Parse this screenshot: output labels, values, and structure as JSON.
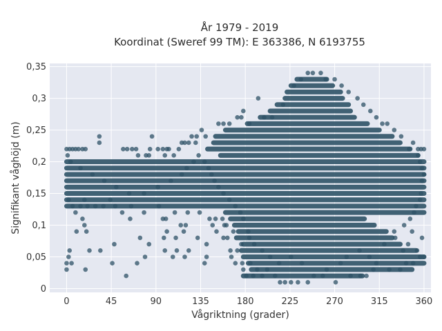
{
  "chart_data": {
    "type": "scatter",
    "title": "År 1979 - 2019",
    "subtitle": "Koordinat (Sweref 99 TM): E 363386, N 6193755",
    "xlabel": "Vågriktning (grader)",
    "ylabel": "Signifikant våghöjd (m)",
    "xlim": [
      -17,
      367
    ],
    "ylim": [
      -0.006,
      0.355
    ],
    "x_ticks": [
      0,
      45,
      90,
      135,
      180,
      225,
      270,
      315,
      360
    ],
    "x_tick_labels": [
      "0",
      "45",
      "90",
      "135",
      "180",
      "225",
      "270",
      "315",
      "360"
    ],
    "y_ticks": [
      0,
      0.05,
      0.1,
      0.15,
      0.2,
      0.25,
      0.3,
      0.35
    ],
    "y_tick_labels": [
      "0",
      "0,05",
      "0,1",
      "0,15",
      "0,2",
      "0,25",
      "0,3",
      "0,35"
    ],
    "grid": true,
    "legend": "none",
    "marker_color": "#2e5266",
    "background_color": "#e5e8f1",
    "points": [
      [
        0,
        0.03
      ],
      [
        0,
        0.04
      ],
      [
        2,
        0.05
      ],
      [
        3,
        0.06
      ],
      [
        5,
        0.04
      ],
      [
        19,
        0.03
      ],
      [
        23,
        0.06
      ],
      [
        34,
        0.06
      ],
      [
        46,
        0.04
      ],
      [
        48,
        0.07
      ],
      [
        60,
        0.02
      ],
      [
        71,
        0.04
      ],
      [
        79,
        0.05
      ],
      [
        83,
        0.07
      ],
      [
        99,
        0.06
      ],
      [
        101,
        0.09
      ],
      [
        100,
        0.11
      ],
      [
        98,
        0.08
      ],
      [
        107,
        0.05
      ],
      [
        111,
        0.06
      ],
      [
        110,
        0.08
      ],
      [
        118,
        0.09
      ],
      [
        119,
        0.05
      ],
      [
        123,
        0.06
      ],
      [
        132,
        0.08
      ],
      [
        139,
        0.04
      ],
      [
        141,
        0.05
      ],
      [
        141,
        0.07
      ],
      [
        10,
        0.09
      ],
      [
        16,
        0.11
      ],
      [
        20,
        0.09
      ],
      [
        18,
        0.1
      ],
      [
        64,
        0.11
      ],
      [
        74,
        0.08
      ],
      [
        97,
        0.11
      ],
      [
        115,
        0.1
      ],
      [
        120,
        0.1
      ],
      [
        151,
        0.09
      ],
      [
        158,
        0.08
      ],
      [
        147,
        0.1
      ],
      [
        0,
        0.22
      ],
      [
        3,
        0.22
      ],
      [
        6,
        0.22
      ],
      [
        9,
        0.22
      ],
      [
        12,
        0.22
      ],
      [
        16,
        0.22
      ],
      [
        19,
        0.22
      ],
      [
        33,
        0.23
      ],
      [
        33,
        0.24
      ],
      [
        57,
        0.22
      ],
      [
        61,
        0.22
      ],
      [
        66,
        0.22
      ],
      [
        70,
        0.22
      ],
      [
        72,
        0.21
      ],
      [
        80,
        0.21
      ],
      [
        83,
        0.21
      ],
      [
        84,
        0.22
      ],
      [
        86,
        0.24
      ],
      [
        92,
        0.22
      ],
      [
        97,
        0.22
      ],
      [
        99,
        0.21
      ],
      [
        101,
        0.22
      ],
      [
        103,
        0.22
      ],
      [
        108,
        0.21
      ],
      [
        113,
        0.22
      ],
      [
        116,
        0.23
      ],
      [
        119,
        0.23
      ],
      [
        123,
        0.23
      ],
      [
        126,
        0.24
      ],
      [
        130,
        0.23
      ],
      [
        131,
        0.24
      ],
      [
        136,
        0.25
      ],
      [
        140,
        0.24
      ],
      [
        153,
        0.26
      ],
      [
        158,
        0.26
      ],
      [
        164,
        0.26
      ],
      [
        172,
        0.27
      ],
      [
        176,
        0.27
      ],
      [
        178,
        0.28
      ],
      [
        184,
        0.26
      ],
      [
        193,
        0.3
      ],
      [
        199,
        0.27
      ],
      [
        207,
        0.27
      ],
      [
        218,
        0.29
      ],
      [
        229,
        0.32
      ],
      [
        236,
        0.33
      ],
      [
        243,
        0.34
      ],
      [
        248,
        0.34
      ],
      [
        256,
        0.34
      ],
      [
        261,
        0.33
      ],
      [
        270,
        0.33
      ],
      [
        277,
        0.32
      ],
      [
        284,
        0.31
      ],
      [
        293,
        0.3
      ],
      [
        299,
        0.29
      ],
      [
        306,
        0.28
      ],
      [
        312,
        0.27
      ],
      [
        318,
        0.26
      ],
      [
        323,
        0.26
      ],
      [
        330,
        0.25
      ],
      [
        337,
        0.24
      ],
      [
        345,
        0.22
      ],
      [
        349,
        0.23
      ],
      [
        354,
        0.22
      ],
      [
        357,
        0.22
      ],
      [
        360,
        0.22
      ],
      [
        2,
        0.14
      ],
      [
        6,
        0.13
      ],
      [
        9,
        0.12
      ],
      [
        14,
        0.13
      ],
      [
        18,
        0.14
      ],
      [
        21,
        0.13
      ],
      [
        29,
        0.13
      ],
      [
        37,
        0.13
      ],
      [
        44,
        0.14
      ],
      [
        49,
        0.13
      ],
      [
        56,
        0.12
      ],
      [
        65,
        0.13
      ],
      [
        78,
        0.12
      ],
      [
        93,
        0.13
      ],
      [
        109,
        0.12
      ],
      [
        122,
        0.12
      ],
      [
        134,
        0.12
      ],
      [
        144,
        0.11
      ],
      [
        150,
        0.11
      ],
      [
        159,
        0.1
      ],
      [
        215,
        0.01
      ],
      [
        220,
        0.01
      ],
      [
        226,
        0.01
      ],
      [
        233,
        0.01
      ],
      [
        243,
        0.01
      ],
      [
        249,
        0.02
      ],
      [
        258,
        0.02
      ],
      [
        271,
        0.01
      ],
      [
        286,
        0.02
      ],
      [
        296,
        0.02
      ],
      [
        302,
        0.02
      ],
      [
        309,
        0.03
      ],
      [
        325,
        0.03
      ],
      [
        336,
        0.03
      ],
      [
        342,
        0.04
      ],
      [
        349,
        0.04
      ],
      [
        356,
        0.05
      ],
      [
        360,
        0.05
      ],
      [
        181,
        0.02
      ],
      [
        188,
        0.02
      ],
      [
        197,
        0.02
      ],
      [
        202,
        0.03
      ],
      [
        210,
        0.02
      ],
      [
        192,
        0.03
      ],
      [
        177,
        0.04
      ],
      [
        170,
        0.04
      ],
      [
        166,
        0.05
      ],
      [
        165,
        0.06
      ],
      [
        172,
        0.06
      ],
      [
        176,
        0.07
      ],
      [
        162,
        0.08
      ],
      [
        168,
        0.09
      ],
      [
        161,
        0.1
      ],
      [
        157,
        0.11
      ],
      [
        178,
        0.03
      ],
      [
        185,
        0.04
      ],
      [
        330,
        0.09
      ],
      [
        340,
        0.1
      ],
      [
        346,
        0.11
      ],
      [
        350,
        0.12
      ],
      [
        352,
        0.13
      ],
      [
        356,
        0.14
      ],
      [
        357,
        0.15
      ],
      [
        358,
        0.17
      ],
      [
        360,
        0.18
      ],
      [
        358,
        0.19
      ],
      [
        356,
        0.2
      ],
      [
        354,
        0.21
      ],
      [
        320,
        0.07
      ],
      [
        331,
        0.08
      ],
      [
        339,
        0.06
      ],
      [
        344,
        0.07
      ],
      [
        358,
        0.08
      ],
      [
        353,
        0.06
      ],
      [
        348,
        0.09
      ],
      [
        312,
        0.04
      ],
      [
        305,
        0.05
      ],
      [
        295,
        0.06
      ],
      [
        282,
        0.05
      ],
      [
        276,
        0.04
      ],
      [
        262,
        0.03
      ],
      [
        237,
        0.04
      ],
      [
        226,
        0.05
      ],
      [
        214,
        0.04
      ],
      [
        205,
        0.05
      ],
      [
        197,
        0.06
      ],
      [
        189,
        0.07
      ],
      [
        184,
        0.08
      ],
      [
        183,
        0.09
      ],
      [
        178,
        0.11
      ],
      [
        175,
        0.12
      ],
      [
        170,
        0.13
      ],
      [
        164,
        0.14
      ],
      [
        158,
        0.15
      ],
      [
        153,
        0.16
      ],
      [
        149,
        0.17
      ],
      [
        146,
        0.18
      ],
      [
        143,
        0.19
      ],
      [
        139,
        0.2
      ],
      [
        133,
        0.21
      ],
      [
        128,
        0.2
      ],
      [
        121,
        0.19
      ],
      [
        116,
        0.18
      ],
      [
        105,
        0.17
      ],
      [
        92,
        0.16
      ],
      [
        78,
        0.15
      ],
      [
        63,
        0.15
      ],
      [
        50,
        0.16
      ],
      [
        38,
        0.17
      ],
      [
        26,
        0.18
      ],
      [
        14,
        0.19
      ],
      [
        4,
        0.2
      ],
      [
        1,
        0.21
      ]
    ],
    "bands": [
      {
        "y": 0.02,
        "x0": 178,
        "x1": 298
      },
      {
        "y": 0.03,
        "x0": 186,
        "x1": 348
      },
      {
        "y": 0.04,
        "x0": 183,
        "x1": 360
      },
      {
        "y": 0.05,
        "x0": 178,
        "x1": 360
      },
      {
        "y": 0.06,
        "x0": 176,
        "x1": 352
      },
      {
        "y": 0.07,
        "x0": 178,
        "x1": 336
      },
      {
        "y": 0.08,
        "x0": 171,
        "x1": 328
      },
      {
        "y": 0.09,
        "x0": 173,
        "x1": 322
      },
      {
        "y": 0.1,
        "x0": 169,
        "x1": 310
      },
      {
        "y": 0.11,
        "x0": 165,
        "x1": 300
      },
      {
        "y": 0.12,
        "x0": 160,
        "x1": 360
      },
      {
        "y": 0.13,
        "x0": 0,
        "x1": 360
      },
      {
        "y": 0.14,
        "x0": 0,
        "x1": 360
      },
      {
        "y": 0.15,
        "x0": 0,
        "x1": 360
      },
      {
        "y": 0.16,
        "x0": 0,
        "x1": 360
      },
      {
        "y": 0.17,
        "x0": 0,
        "x1": 360
      },
      {
        "y": 0.18,
        "x0": 0,
        "x1": 360
      },
      {
        "y": 0.19,
        "x0": 0,
        "x1": 360
      },
      {
        "y": 0.2,
        "x0": 0,
        "x1": 360
      },
      {
        "y": 0.21,
        "x0": 155,
        "x1": 354
      },
      {
        "y": 0.22,
        "x0": 142,
        "x1": 346
      },
      {
        "y": 0.23,
        "x0": 148,
        "x1": 336
      },
      {
        "y": 0.24,
        "x0": 150,
        "x1": 328
      },
      {
        "y": 0.25,
        "x0": 160,
        "x1": 315
      },
      {
        "y": 0.26,
        "x0": 182,
        "x1": 303
      },
      {
        "y": 0.27,
        "x0": 195,
        "x1": 290
      },
      {
        "y": 0.28,
        "x0": 205,
        "x1": 286
      },
      {
        "y": 0.29,
        "x0": 212,
        "x1": 284
      },
      {
        "y": 0.3,
        "x0": 220,
        "x1": 278
      },
      {
        "y": 0.31,
        "x0": 222,
        "x1": 276
      },
      {
        "y": 0.32,
        "x0": 226,
        "x1": 268
      },
      {
        "y": 0.33,
        "x0": 232,
        "x1": 262
      }
    ]
  }
}
